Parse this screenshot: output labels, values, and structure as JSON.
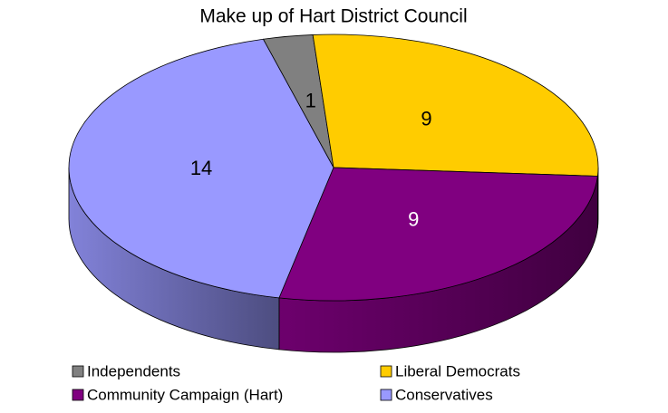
{
  "chart_data": {
    "type": "pie",
    "title": "Make up of Hart District Council",
    "categories": [
      "Independents",
      "Liberal Democrats",
      "Community Campaign (Hart)",
      "Conservatives"
    ],
    "values": [
      1,
      9,
      9,
      14
    ],
    "colors": [
      "#808080",
      "#ffcc00",
      "#800080",
      "#9999ff"
    ]
  }
}
